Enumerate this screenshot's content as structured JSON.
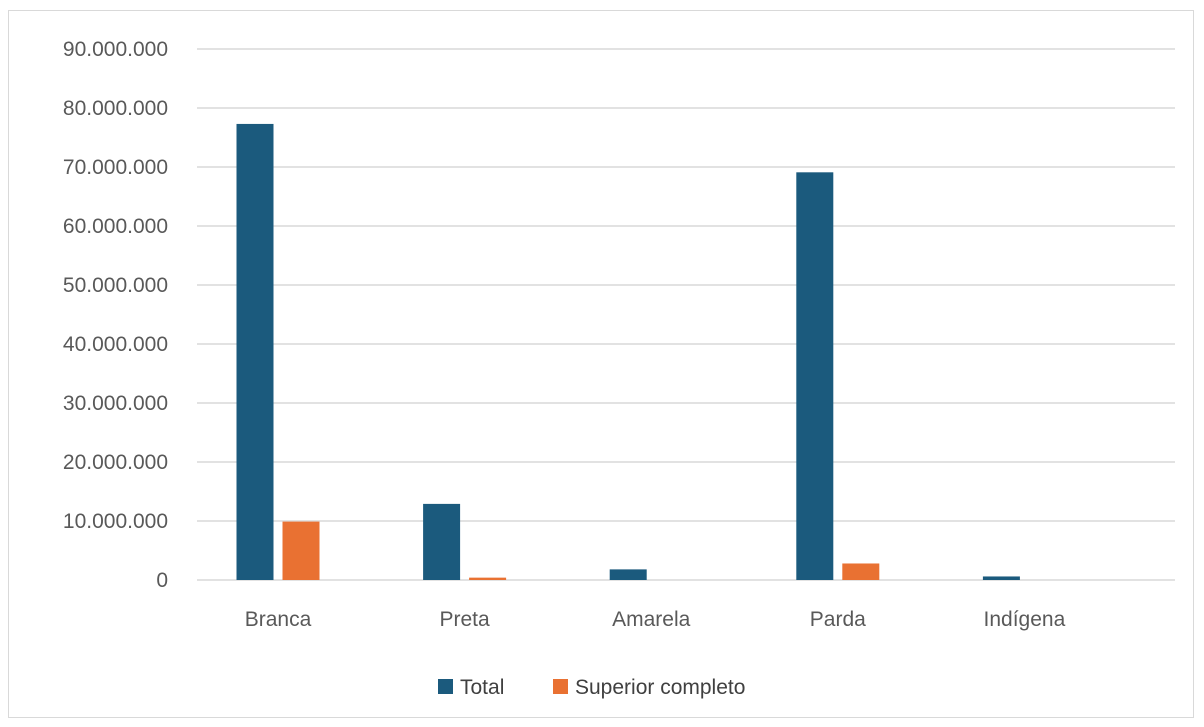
{
  "chart_data": {
    "type": "bar",
    "categories": [
      "Branca",
      "Preta",
      "Amarela",
      "Parda",
      "Indígena"
    ],
    "series": [
      {
        "name": "Total",
        "color": "#1b5a7d",
        "values": [
          77300000,
          12900000,
          1800000,
          69100000,
          600000
        ]
      },
      {
        "name": "Superior completo",
        "color": "#e97132",
        "values": [
          9900000,
          400000,
          0,
          2800000,
          0
        ]
      }
    ],
    "ylim": [
      0,
      90000000
    ],
    "ytick_step": 10000000,
    "ytick_labels": [
      "0",
      "10.000.000",
      "20.000.000",
      "30.000.000",
      "40.000.000",
      "50.000.000",
      "60.000.000",
      "70.000.000",
      "80.000.000",
      "90.000.000"
    ],
    "grid": true,
    "legend_position": "bottom",
    "gridline_color": "#d9d9d9"
  }
}
